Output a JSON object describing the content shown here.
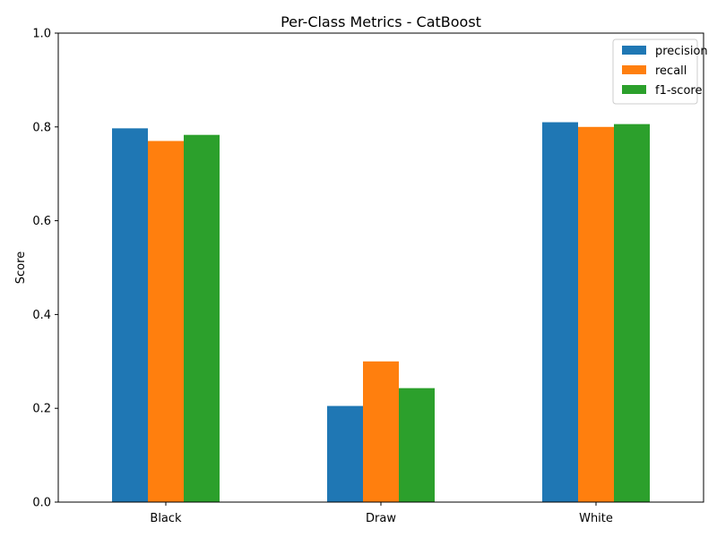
{
  "chart_data": {
    "type": "bar",
    "title": "Per-Class Metrics - CatBoost",
    "xlabel": "",
    "ylabel": "Score",
    "ylim": [
      0,
      1.0
    ],
    "yticks": [
      0.0,
      0.2,
      0.4,
      0.6,
      0.8,
      1.0
    ],
    "ytick_labels": [
      "0.0",
      "0.2",
      "0.4",
      "0.6",
      "0.8",
      "1.0"
    ],
    "categories": [
      "Black",
      "Draw",
      "White"
    ],
    "series": [
      {
        "name": "precision",
        "color": "#1f77b4",
        "values": [
          0.797,
          0.205,
          0.81
        ]
      },
      {
        "name": "recall",
        "color": "#ff7f0e",
        "values": [
          0.77,
          0.3,
          0.8
        ]
      },
      {
        "name": "f1-score",
        "color": "#2ca02c",
        "values": [
          0.783,
          0.243,
          0.806
        ]
      }
    ],
    "grid": false,
    "legend_position": "top-right"
  }
}
